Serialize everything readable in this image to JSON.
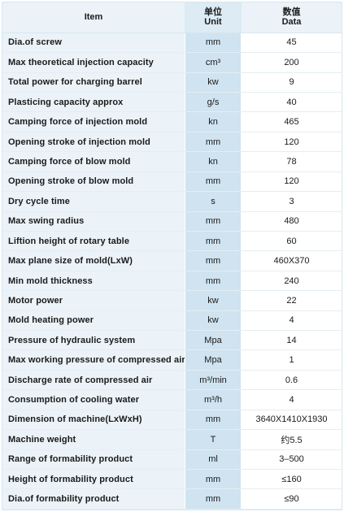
{
  "header": {
    "item": "Item",
    "unit_cn": "单位",
    "unit_en": "Unit",
    "data_cn": "数值",
    "data_en": "Data"
  },
  "rows": [
    {
      "item": "Dia.of screw",
      "unit": "mm",
      "value": "45"
    },
    {
      "item": "Max theoretical injection capacity",
      "unit": "cm³",
      "value": "200"
    },
    {
      "item": "Total power for charging barrel",
      "unit": "kw",
      "value": "9"
    },
    {
      "item": "Plasticing capacity approx",
      "unit": "g/s",
      "value": "40"
    },
    {
      "item": "Camping force of injection mold",
      "unit": "kn",
      "value": "465"
    },
    {
      "item": "Opening stroke of injection mold",
      "unit": "mm",
      "value": "120"
    },
    {
      "item": "Camping force of blow mold",
      "unit": "kn",
      "value": "78"
    },
    {
      "item": "Opening stroke of blow mold",
      "unit": "mm",
      "value": "120"
    },
    {
      "item": "Dry cycle time",
      "unit": "s",
      "value": "3"
    },
    {
      "item": "Max swing radius",
      "unit": "mm",
      "value": "480"
    },
    {
      "item": "Liftion height of rotary table",
      "unit": "mm",
      "value": "60"
    },
    {
      "item": "Max plane size of mold(LxW)",
      "unit": "mm",
      "value": "460X370"
    },
    {
      "item": "Min mold thickness",
      "unit": "mm",
      "value": "240"
    },
    {
      "item": "Motor power",
      "unit": "kw",
      "value": "22"
    },
    {
      "item": "Mold heating power",
      "unit": "kw",
      "value": "4"
    },
    {
      "item": "Pressure of hydraulic system",
      "unit": "Mpa",
      "value": "14"
    },
    {
      "item": "Max working pressure of compressed air",
      "unit": "Mpa",
      "value": "1"
    },
    {
      "item": "Discharge rate of compressed air",
      "unit": "m³/min",
      "value": "0.6"
    },
    {
      "item": "Consumption of cooling water",
      "unit": "m³/h",
      "value": "4"
    },
    {
      "item": "Dimension of machine(LxWxH)",
      "unit": "mm",
      "value": "3640X1410X1930"
    },
    {
      "item": "Machine weight",
      "unit": "T",
      "value": "约5.5"
    },
    {
      "item": "Range of formability product",
      "unit": "ml",
      "value": "3–500"
    },
    {
      "item": "Height of formability product",
      "unit": "mm",
      "value": "≤160"
    },
    {
      "item": "Dia.of formability product",
      "unit": "mm",
      "value": "≤90"
    }
  ]
}
